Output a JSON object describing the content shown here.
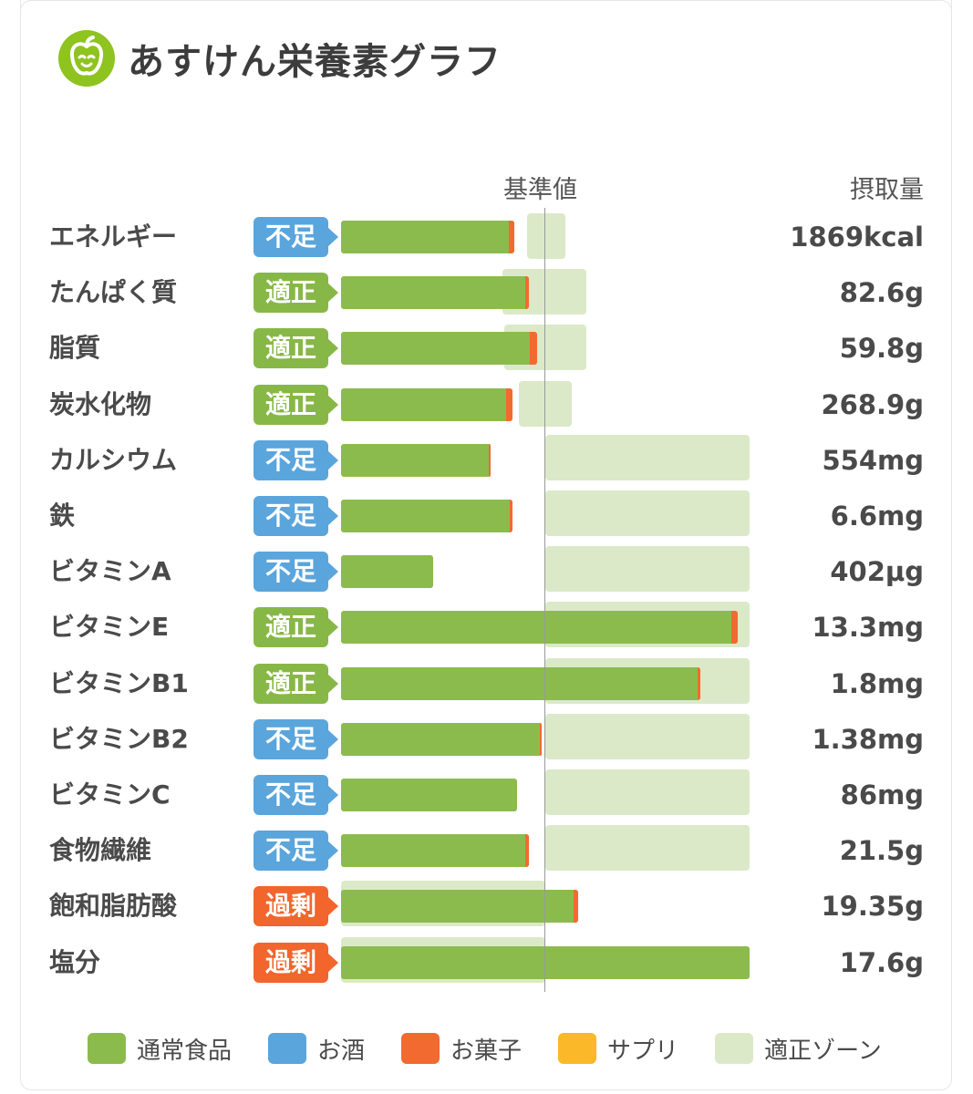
{
  "header": {
    "title": "あすけん栄養素グラフ",
    "logo_icon": "apple-face-icon"
  },
  "columns": {
    "reference": "基準値",
    "intake": "摂取量"
  },
  "colors": {
    "normal_food": "#8cbb4d",
    "alcohol": "#5aa5dc",
    "snack": "#f26a30",
    "supplement": "#fbb829",
    "proper_zone": "#dbe9c8",
    "status_short": "#5aa5dc",
    "status_ok": "#87b847",
    "status_over": "#f2652d"
  },
  "chart_data": {
    "type": "bar",
    "orientation": "horizontal",
    "reference_value_percent": 100,
    "categories": [
      "エネルギー",
      "たんぱく質",
      "脂質",
      "炭水化物",
      "カルシウム",
      "鉄",
      "ビタミンA",
      "ビタミンE",
      "ビタミンB1",
      "ビタミンB2",
      "ビタミンC",
      "食物繊維",
      "飽和脂肪酸",
      "塩分"
    ],
    "rows": [
      {
        "name": "エネルギー",
        "status": "不足",
        "status_class": "short",
        "intake": "1869kcal",
        "food_pct": 85,
        "snack_pct": 6,
        "zone_pct": [
          91,
          110
        ]
      },
      {
        "name": "たんぱく質",
        "status": "適正",
        "status_class": "ok",
        "intake": "82.6g",
        "food_pct": 92,
        "snack_pct": 4,
        "zone_pct": [
          79,
          120
        ]
      },
      {
        "name": "脂質",
        "status": "適正",
        "status_class": "ok",
        "intake": "59.8g",
        "food_pct": 96,
        "snack_pct": 7,
        "zone_pct": [
          80,
          120
        ]
      },
      {
        "name": "炭水化物",
        "status": "適正",
        "status_class": "ok",
        "intake": "268.9g",
        "food_pct": 84,
        "snack_pct": 6,
        "zone_pct": [
          87,
          113
        ]
      },
      {
        "name": "カルシウム",
        "status": "不足",
        "status_class": "short",
        "intake": "554mg",
        "food_pct": 73,
        "snack_pct": 1,
        "zone_pct": [
          100,
          200
        ]
      },
      {
        "name": "鉄",
        "status": "不足",
        "status_class": "short",
        "intake": "6.6mg",
        "food_pct": 84,
        "snack_pct": 3,
        "zone_pct": [
          100,
          200
        ]
      },
      {
        "name": "ビタミンA",
        "status": "不足",
        "status_class": "short",
        "intake": "402μg",
        "food_pct": 45,
        "snack_pct": 0,
        "zone_pct": [
          100,
          200
        ]
      },
      {
        "name": "ビタミンE",
        "status": "適正",
        "status_class": "ok",
        "intake": "13.3mg",
        "food_pct": 194,
        "snack_pct": 6,
        "zone_pct": [
          100,
          200
        ]
      },
      {
        "name": "ビタミンB1",
        "status": "適正",
        "status_class": "ok",
        "intake": "1.8mg",
        "food_pct": 176,
        "snack_pct": 3,
        "zone_pct": [
          100,
          200
        ]
      },
      {
        "name": "ビタミンB2",
        "status": "不足",
        "status_class": "short",
        "intake": "1.38mg",
        "food_pct": 98,
        "snack_pct": 1,
        "zone_pct": [
          100,
          200
        ]
      },
      {
        "name": "ビタミンC",
        "status": "不足",
        "status_class": "short",
        "intake": "86mg",
        "food_pct": 86,
        "snack_pct": 0,
        "zone_pct": [
          100,
          200
        ]
      },
      {
        "name": "食物繊維",
        "status": "不足",
        "status_class": "short",
        "intake": "21.5g",
        "food_pct": 92,
        "snack_pct": 4,
        "zone_pct": [
          100,
          200
        ]
      },
      {
        "name": "飽和脂肪酸",
        "status": "過剰",
        "status_class": "over",
        "intake": "19.35g",
        "food_pct": 116,
        "snack_pct": 4,
        "zone_pct": [
          0,
          100
        ]
      },
      {
        "name": "塩分",
        "status": "過剰",
        "status_class": "over",
        "intake": "17.6g",
        "food_pct": 200,
        "snack_pct": 0,
        "zone_pct": [
          0,
          100
        ]
      }
    ],
    "xlim": [
      0,
      200
    ]
  },
  "legend": [
    {
      "label": "通常食品",
      "color": "#8cbb4d"
    },
    {
      "label": "お酒",
      "color": "#5aa5dc"
    },
    {
      "label": "お菓子",
      "color": "#f26a30"
    },
    {
      "label": "サプリ",
      "color": "#fbb829"
    },
    {
      "label": "適正ゾーン",
      "color": "#dbe9c8"
    }
  ]
}
